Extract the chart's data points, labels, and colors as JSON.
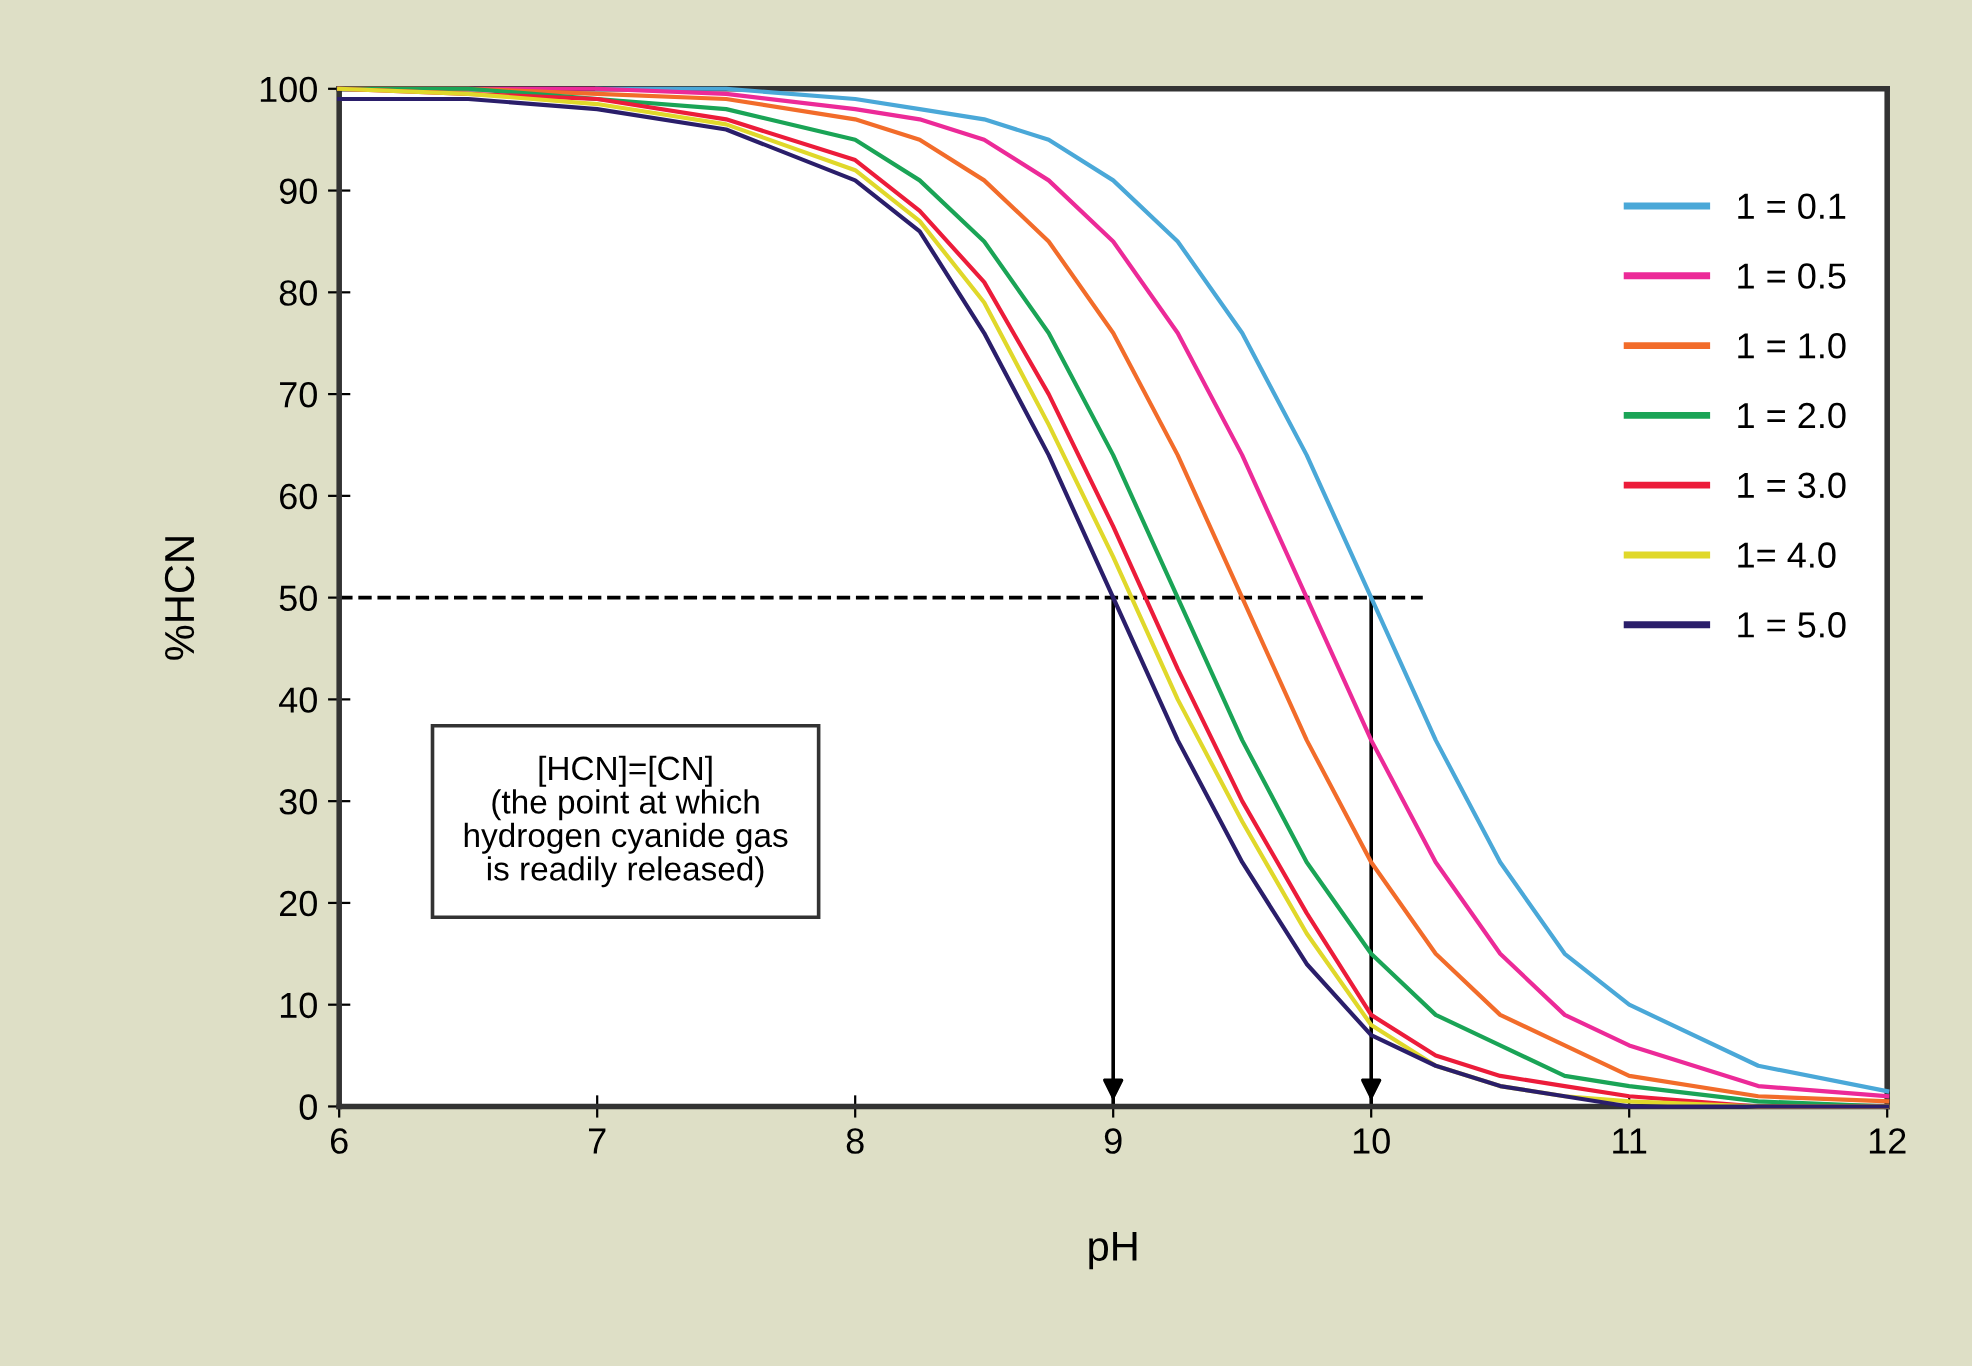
{
  "chart_data": {
    "type": "line",
    "xlabel": "pH",
    "ylabel": "%HCN",
    "x": [
      6,
      6.5,
      7,
      7.5,
      8,
      8.25,
      8.5,
      8.75,
      9,
      9.25,
      9.5,
      9.75,
      10,
      10.25,
      10.5,
      10.75,
      11,
      11.5,
      12
    ],
    "series": [
      {
        "name": "1 = 0.1",
        "color": "#4aa8d8",
        "values": [
          null,
          null,
          100,
          100,
          99,
          98,
          97,
          95,
          91,
          85,
          76,
          64,
          50,
          36,
          24,
          15,
          10,
          4,
          1.5
        ]
      },
      {
        "name": "1 = 0.5",
        "color": "#ec2a98",
        "values": [
          100,
          100,
          100,
          99.5,
          98,
          97,
          95,
          91,
          85,
          76,
          64,
          50,
          36,
          24,
          15,
          9,
          6,
          2,
          1
        ]
      },
      {
        "name": "1 = 1.0",
        "color": "#f26c2a",
        "values": [
          100,
          100,
          99.5,
          99,
          97,
          95,
          91,
          85,
          76,
          64,
          50,
          36,
          24,
          15,
          9,
          6,
          3,
          1,
          0.5
        ]
      },
      {
        "name": "1 = 2.0",
        "color": "#1aa456",
        "values": [
          100,
          100,
          99,
          98,
          95,
          91,
          85,
          76,
          64,
          50,
          36,
          24,
          15,
          9,
          6,
          3,
          2,
          0.5,
          0
        ]
      },
      {
        "name": "1 = 3.0",
        "color": "#ec1c3a",
        "values": [
          100,
          99.5,
          99,
          97,
          93,
          88,
          81,
          70,
          57,
          43,
          30,
          19,
          9,
          5,
          3,
          2,
          1,
          0,
          0
        ]
      },
      {
        "name": "1= 4.0",
        "color": "#e0d82a",
        "values": [
          100,
          99.5,
          98.5,
          96.5,
          92,
          87,
          79,
          67,
          54,
          40,
          28,
          17,
          8,
          4,
          2,
          1,
          0.5,
          0,
          0
        ]
      },
      {
        "name": "1 = 5.0",
        "color": "#2a1e6a",
        "values": [
          99,
          99,
          98,
          96,
          91,
          86,
          76,
          64,
          50,
          36,
          24,
          14,
          7,
          4,
          2,
          1,
          0,
          0,
          0
        ]
      }
    ],
    "xlim": [
      6,
      12
    ],
    "ylim": [
      0,
      100
    ],
    "xticks": [
      6,
      7,
      8,
      9,
      10,
      11,
      12
    ],
    "yticks": [
      0,
      10,
      20,
      30,
      40,
      50,
      60,
      70,
      80,
      90,
      100
    ],
    "ref_lines": [
      {
        "axis": "y",
        "value": 50,
        "line_style": "dashed",
        "color": "#000000"
      },
      {
        "axis": "x",
        "value": 9,
        "color": "#000000"
      },
      {
        "axis": "x",
        "value": 10,
        "color": "#000000"
      }
    ],
    "annotations": [
      "[HCN]=[CN]\n(the point at which\nhydrogen cyanide gas\nis readily released)"
    ],
    "legend": "top right",
    "grid": false,
    "marker": "none",
    "line_style": "solid"
  }
}
